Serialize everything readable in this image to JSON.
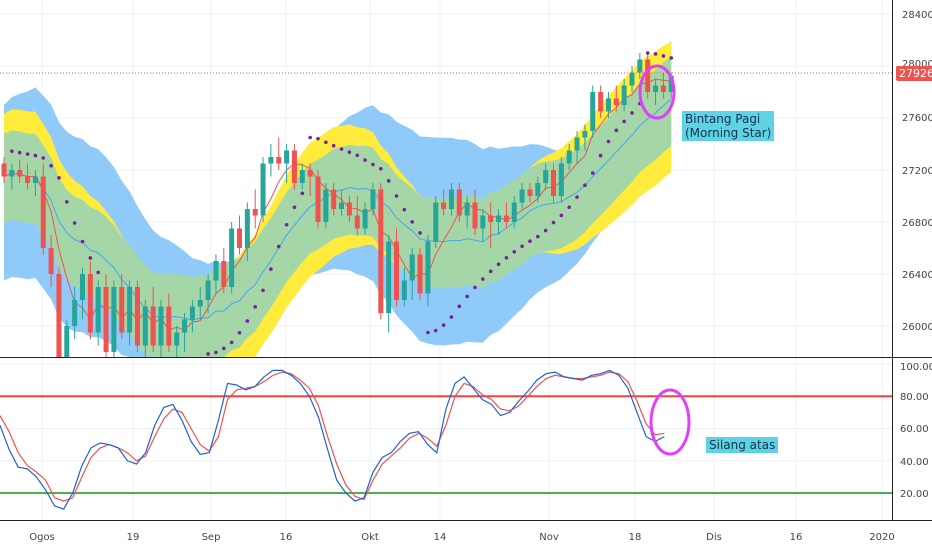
{
  "colors": {
    "up": "#26a69a",
    "down": "#ef5350",
    "envelope_outer": "#90caf9",
    "envelope_inner": "#ffeb3b",
    "envelope_core": "#a5d6a7",
    "ma_fast": "#ef5350",
    "ma_slow": "#42a5f5",
    "psar": "#7b1fa2",
    "highlight": "#e040fb",
    "stoch_k": "#1e62d0",
    "stoch_d": "#ef5350",
    "overbought": "#f44336",
    "oversold": "#4caf50",
    "annotation_bg": "#5fd3e6"
  },
  "price_axis": {
    "ticks": [
      "28400",
      "28000",
      "27600",
      "27200",
      "26800",
      "26400",
      "26000"
    ],
    "current_price_label": "27926"
  },
  "stoch_axis": {
    "ticks": [
      "100.00",
      "80.00",
      "60.00",
      "40.00",
      "20.00"
    ]
  },
  "time_axis": {
    "ticks": [
      "Ogos",
      "19",
      "Sep",
      "16",
      "Okt",
      "14",
      "Nov",
      "18",
      "Dis",
      "16",
      "2020"
    ]
  },
  "annotations": {
    "morning_star_line1": "Bintang Pagi",
    "morning_star_line2": "(Morning Star)",
    "stoch_cross": "Silang atas"
  },
  "chart_data": [
    {
      "type": "candlestick",
      "ylim": [
        25800,
        28700
      ],
      "current_price": 27926,
      "x_ticks": [
        "Ogos",
        "19",
        "Sep",
        "16",
        "Okt",
        "14",
        "Nov",
        "18",
        "Dis",
        "16",
        "2020"
      ],
      "y_ticks": [
        28400,
        28000,
        27600,
        27200,
        26800,
        26400,
        26000
      ],
      "candles": [
        [
          27250,
          27300,
          27100,
          27150
        ],
        [
          27150,
          27250,
          27050,
          27200
        ],
        [
          27200,
          27280,
          27100,
          27150
        ],
        [
          27150,
          27250,
          27050,
          27100
        ],
        [
          27100,
          27200,
          27000,
          27150
        ],
        [
          27150,
          27250,
          26550,
          26600
        ],
        [
          26600,
          26700,
          26300,
          26400
        ],
        [
          26400,
          26450,
          25600,
          25700
        ],
        [
          25750,
          26050,
          25600,
          26000
        ],
        [
          26000,
          26300,
          25900,
          26200
        ],
        [
          26200,
          26450,
          26050,
          26400
        ],
        [
          26400,
          26500,
          25900,
          25950
        ],
        [
          25950,
          26350,
          25850,
          26300
        ],
        [
          26300,
          26400,
          25750,
          25800
        ],
        [
          25800,
          26350,
          25700,
          26300
        ],
        [
          26300,
          26400,
          25900,
          25950
        ],
        [
          25950,
          26350,
          25850,
          26300
        ],
        [
          26300,
          26350,
          25800,
          25850
        ],
        [
          25850,
          26200,
          25750,
          26150
        ],
        [
          26150,
          26300,
          25800,
          25850
        ],
        [
          25850,
          26200,
          25750,
          26150
        ],
        [
          26150,
          26250,
          25800,
          25850
        ],
        [
          25850,
          26000,
          25750,
          25950
        ],
        [
          25950,
          26100,
          25800,
          26050
        ],
        [
          26050,
          26200,
          25950,
          26150
        ],
        [
          26150,
          26300,
          26050,
          26200
        ],
        [
          26200,
          26400,
          26100,
          26350
        ],
        [
          26350,
          26550,
          26250,
          26500
        ],
        [
          26500,
          26600,
          26250,
          26300
        ],
        [
          26300,
          26800,
          26250,
          26750
        ],
        [
          26750,
          26850,
          26550,
          26600
        ],
        [
          26600,
          26950,
          26500,
          26900
        ],
        [
          26900,
          27050,
          26750,
          26850
        ],
        [
          26850,
          27300,
          26800,
          27250
        ],
        [
          27250,
          27400,
          27150,
          27300
        ],
        [
          27300,
          27450,
          27200,
          27250
        ],
        [
          27250,
          27400,
          27100,
          27350
        ],
        [
          27350,
          27400,
          27050,
          27100
        ],
        [
          27100,
          27250,
          27050,
          27200
        ],
        [
          27200,
          27250,
          27000,
          27150
        ],
        [
          27150,
          27200,
          26750,
          26800
        ],
        [
          26800,
          27100,
          26750,
          27050
        ],
        [
          27050,
          27100,
          26850,
          26900
        ],
        [
          26900,
          27050,
          26850,
          26950
        ],
        [
          26950,
          27000,
          26800,
          26850
        ],
        [
          26850,
          27000,
          26700,
          26750
        ],
        [
          26750,
          26950,
          26700,
          26900
        ],
        [
          26900,
          27100,
          26850,
          27050
        ],
        [
          27050,
          27100,
          26050,
          26100
        ],
        [
          26100,
          26700,
          25950,
          26650
        ],
        [
          26650,
          26750,
          26150,
          26200
        ],
        [
          26200,
          26450,
          26150,
          26350
        ],
        [
          26350,
          26600,
          26200,
          26550
        ],
        [
          26550,
          26600,
          26200,
          26250
        ],
        [
          26250,
          26700,
          26150,
          26650
        ],
        [
          26650,
          27000,
          26600,
          26950
        ],
        [
          26950,
          27050,
          26850,
          26900
        ],
        [
          26900,
          27100,
          26850,
          27050
        ],
        [
          27050,
          27100,
          26800,
          26850
        ],
        [
          26850,
          27000,
          26750,
          26950
        ],
        [
          26950,
          27050,
          26700,
          26750
        ],
        [
          26750,
          26900,
          26650,
          26850
        ],
        [
          26850,
          26950,
          26600,
          26800
        ],
        [
          26800,
          26900,
          26700,
          26850
        ],
        [
          26850,
          26950,
          26750,
          26800
        ],
        [
          26800,
          27000,
          26750,
          26950
        ],
        [
          26950,
          27100,
          26900,
          27050
        ],
        [
          27050,
          27100,
          26950,
          27000
        ],
        [
          27000,
          27150,
          26950,
          27100
        ],
        [
          27100,
          27250,
          27050,
          27200
        ],
        [
          27200,
          27250,
          26950,
          27000
        ],
        [
          27000,
          27300,
          26950,
          27250
        ],
        [
          27250,
          27400,
          27200,
          27350
        ],
        [
          27350,
          27500,
          27250,
          27450
        ],
        [
          27450,
          27550,
          27350,
          27500
        ],
        [
          27500,
          27850,
          27450,
          27800
        ],
        [
          27800,
          27850,
          27600,
          27650
        ],
        [
          27650,
          27800,
          27600,
          27750
        ],
        [
          27750,
          27850,
          27650,
          27700
        ],
        [
          27700,
          27900,
          27650,
          27850
        ],
        [
          27850,
          28000,
          27800,
          27950
        ],
        [
          27950,
          28100,
          27900,
          28050
        ],
        [
          28050,
          28100,
          27750,
          27800
        ],
        [
          27800,
          27900,
          27700,
          27850
        ],
        [
          27850,
          27950,
          27750,
          27800
        ],
        [
          27800,
          27950,
          27750,
          27926
        ]
      ]
    },
    {
      "type": "line",
      "ylim": [
        0,
        100
      ],
      "y_ticks": [
        100,
        80,
        60,
        40,
        20
      ],
      "reference_lines": [
        80,
        20
      ],
      "k": [
        62,
        47,
        36,
        35,
        30,
        22,
        12,
        10,
        20,
        37,
        48,
        51,
        50,
        48,
        40,
        38,
        45,
        62,
        73,
        75,
        65,
        52,
        44,
        45,
        65,
        88,
        87,
        84,
        86,
        92,
        96,
        96,
        93,
        88,
        80,
        67,
        47,
        28,
        20,
        15,
        17,
        33,
        42,
        45,
        52,
        57,
        58,
        50,
        45,
        72,
        88,
        92,
        85,
        78,
        75,
        68,
        70,
        77,
        83,
        90,
        94,
        95,
        92,
        91,
        90,
        93,
        94,
        96,
        93,
        85,
        70,
        55,
        52,
        55
      ],
      "d": [
        68,
        58,
        45,
        37,
        33,
        28,
        17,
        15,
        17,
        30,
        42,
        48,
        50,
        48,
        45,
        40,
        43,
        55,
        66,
        72,
        70,
        60,
        50,
        46,
        55,
        78,
        84,
        85,
        86,
        89,
        93,
        95,
        94,
        90,
        85,
        74,
        55,
        38,
        25,
        18,
        16,
        28,
        38,
        43,
        48,
        54,
        57,
        54,
        49,
        62,
        80,
        88,
        86,
        81,
        78,
        72,
        71,
        74,
        80,
        86,
        91,
        93,
        92,
        91,
        91,
        92,
        93,
        95,
        94,
        89,
        77,
        63,
        56,
        57
      ]
    }
  ]
}
